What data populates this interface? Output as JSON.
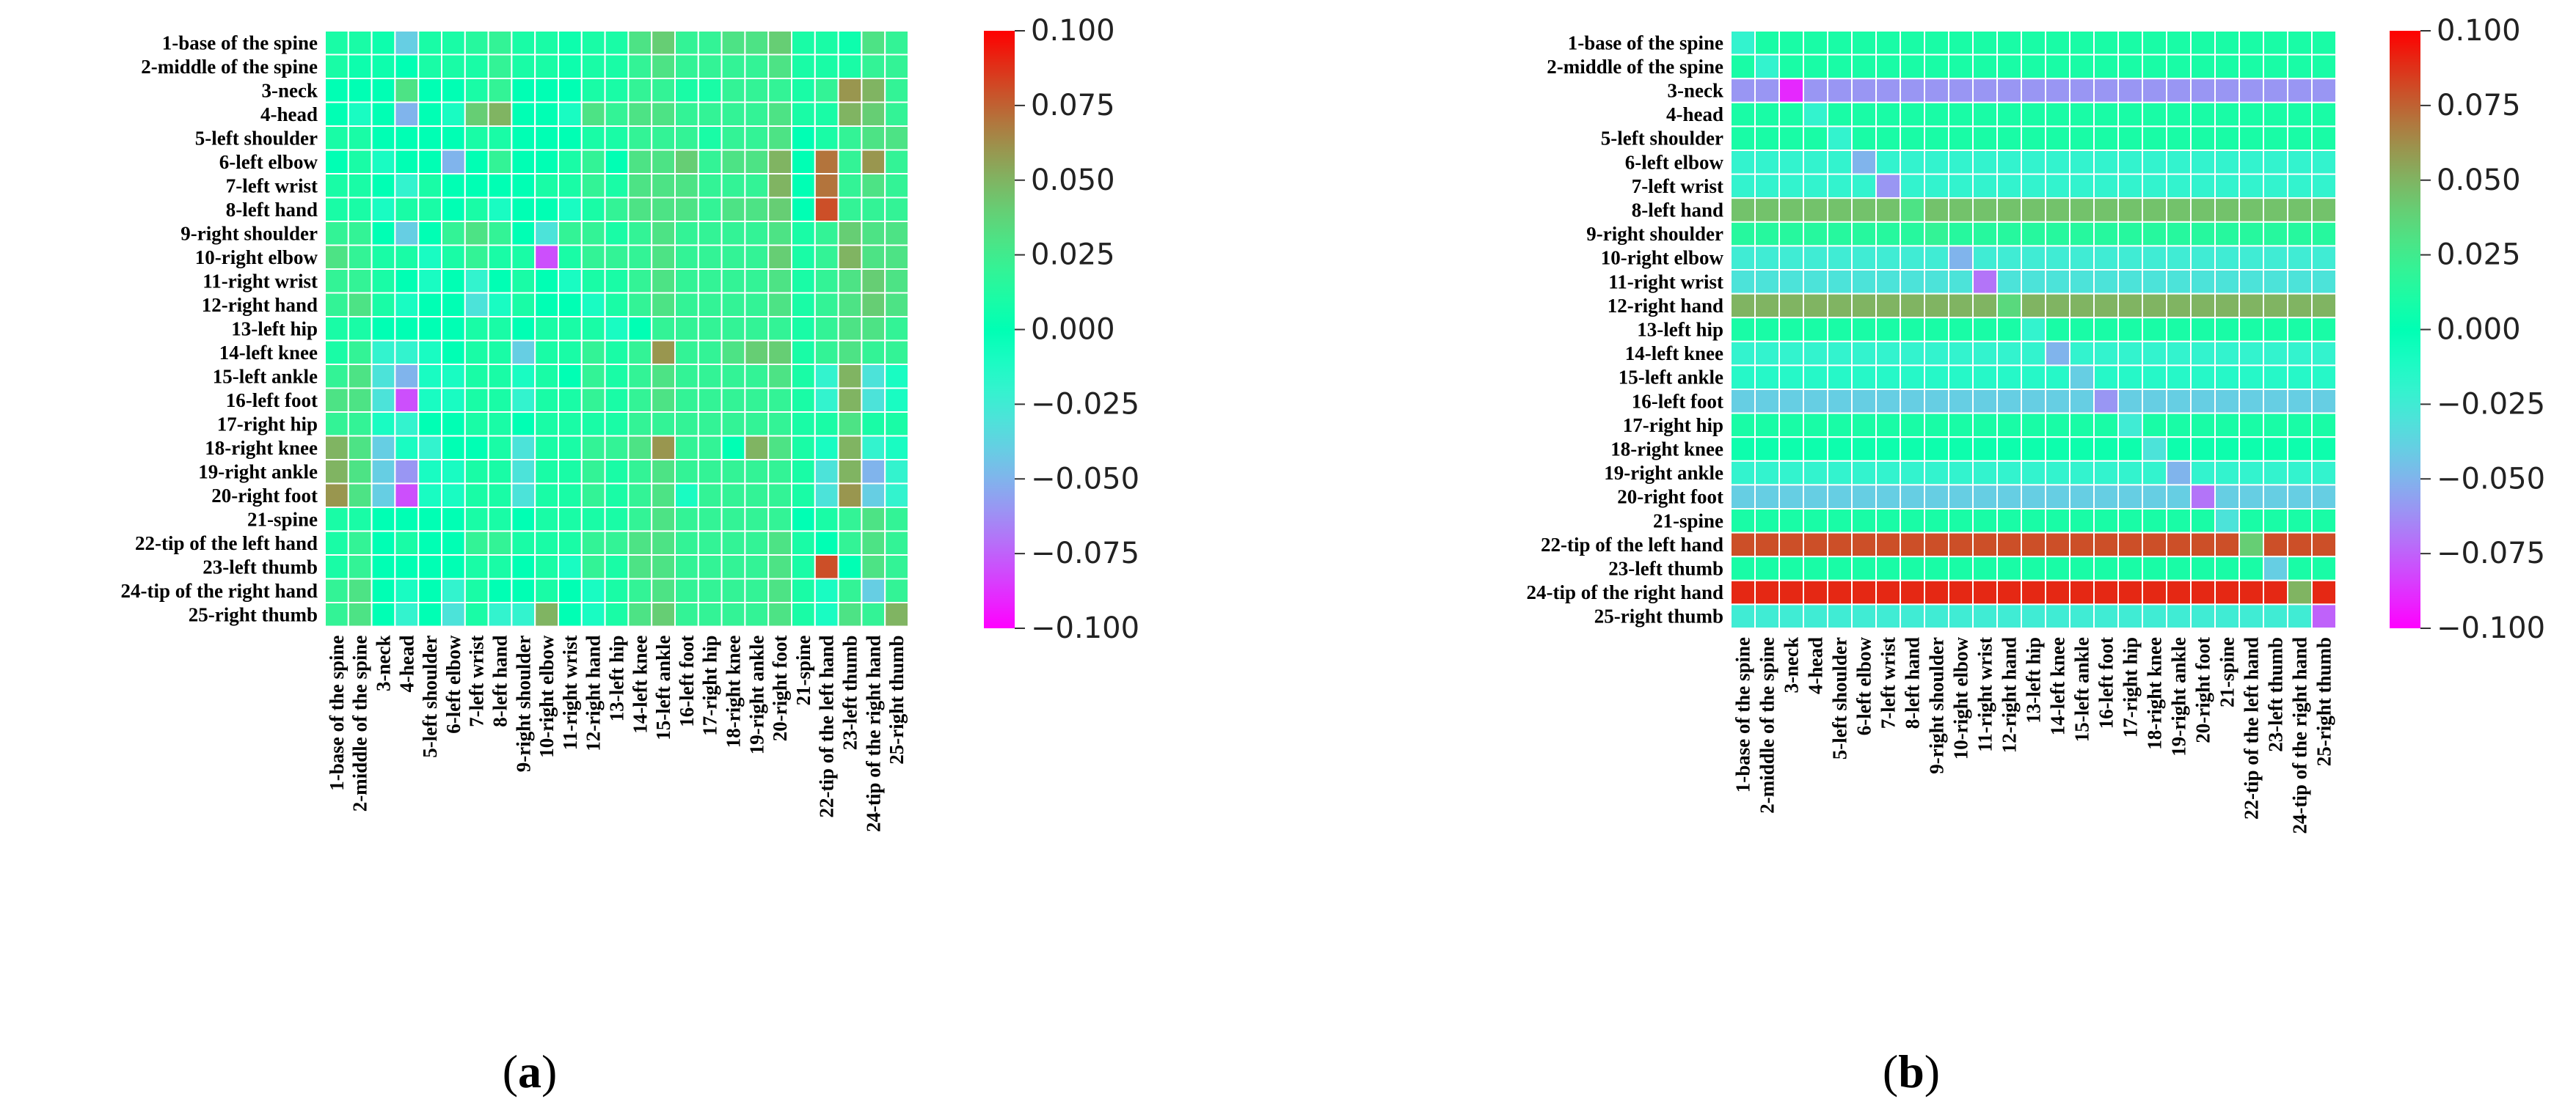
{
  "chart_data": [
    {
      "type": "heatmap",
      "panel": "a",
      "rows": [
        "1-base of the spine",
        "2-middle of the spine",
        "3-neck",
        "4-head",
        "5-left shoulder",
        "6-left elbow",
        "7-left wrist",
        "8-left hand",
        "9-right shoulder",
        "10-right elbow",
        "11-right wrist",
        "12-right hand",
        "13-left hip",
        "14-left knee",
        "15-left ankle",
        "16-left foot",
        "17-right hip",
        "18-right knee",
        "19-right ankle",
        "20-right foot",
        "21-spine",
        "22-tip of the left hand",
        "23-left thumb",
        "24-tip of the right hand",
        "25-right thumb"
      ],
      "columns": [
        "1-base of the spine",
        "2-middle of the spine",
        "3-neck",
        "4-head",
        "5-left shoulder",
        "6-left elbow",
        "7-left wrist",
        "8-left hand",
        "9-right shoulder",
        "10-right elbow",
        "11-right wrist",
        "12-right hand",
        "13-left hip",
        "14-left knee",
        "15-left ankle",
        "16-left foot",
        "17-right hip",
        "18-right knee",
        "19-right ankle",
        "20-right foot",
        "21-spine",
        "22-tip of the left hand",
        "23-left thumb",
        "24-tip of the right hand",
        "25-right thumb"
      ],
      "values": [
        [
          0.01,
          0.01,
          0.005,
          -0.04,
          0.01,
          0.01,
          0.015,
          0.02,
          0.01,
          0.01,
          0.005,
          0.01,
          0.01,
          0.03,
          0.04,
          0.02,
          0.02,
          0.03,
          0.03,
          0.04,
          0.01,
          0.01,
          0.005,
          0.03,
          0.02
        ],
        [
          0.01,
          0.005,
          0.005,
          0.0,
          0.01,
          0.01,
          0.01,
          0.02,
          0.01,
          0.01,
          0.005,
          0.01,
          0.01,
          0.02,
          0.03,
          0.02,
          0.02,
          0.02,
          0.02,
          0.03,
          0.01,
          0.01,
          0.01,
          0.02,
          0.02
        ],
        [
          0.0,
          0.0,
          0.0,
          0.03,
          0.0,
          0.0,
          0.01,
          0.02,
          0.0,
          0.0,
          0.0,
          0.01,
          0.01,
          0.02,
          0.02,
          0.01,
          0.01,
          0.02,
          0.02,
          0.02,
          0.01,
          0.02,
          0.06,
          0.05,
          0.02
        ],
        [
          0.0,
          -0.01,
          0.0,
          -0.05,
          0.0,
          -0.01,
          0.04,
          0.05,
          0.0,
          0.0,
          -0.01,
          0.03,
          0.02,
          0.03,
          0.03,
          0.02,
          0.02,
          0.02,
          0.02,
          0.03,
          0.01,
          0.01,
          0.05,
          0.04,
          0.02
        ],
        [
          0.01,
          0.01,
          0.0,
          0.0,
          0.0,
          0.0,
          0.01,
          0.01,
          0.0,
          0.0,
          0.0,
          0.01,
          0.01,
          0.02,
          0.02,
          0.02,
          0.01,
          0.02,
          0.02,
          0.03,
          0.0,
          0.01,
          0.02,
          0.03,
          0.03
        ],
        [
          0.0,
          0.01,
          -0.01,
          0.0,
          0.0,
          -0.05,
          0.0,
          0.02,
          0.0,
          0.0,
          0.01,
          0.02,
          0.0,
          0.03,
          0.03,
          0.04,
          0.02,
          0.03,
          0.03,
          0.05,
          0.0,
          0.07,
          0.02,
          0.06,
          0.02
        ],
        [
          0.01,
          0.01,
          0.0,
          -0.02,
          0.01,
          0.0,
          0.0,
          0.0,
          0.0,
          0.01,
          0.01,
          0.02,
          0.01,
          0.03,
          0.03,
          0.03,
          0.02,
          0.02,
          0.02,
          0.05,
          0.0,
          0.07,
          0.02,
          0.03,
          0.02
        ],
        [
          0.01,
          0.01,
          -0.01,
          0.01,
          0.01,
          0.0,
          0.01,
          -0.01,
          0.0,
          0.0,
          -0.01,
          0.01,
          0.02,
          0.03,
          0.03,
          0.03,
          0.02,
          0.03,
          0.03,
          0.04,
          0.0,
          0.08,
          0.02,
          0.02,
          0.02
        ],
        [
          0.02,
          0.02,
          0.0,
          -0.04,
          0.0,
          0.02,
          0.03,
          0.02,
          0.0,
          -0.03,
          0.02,
          0.02,
          0.01,
          0.02,
          0.03,
          0.02,
          0.02,
          0.02,
          0.02,
          0.03,
          0.01,
          0.02,
          0.04,
          0.03,
          0.03
        ],
        [
          0.03,
          0.02,
          0.01,
          0.01,
          -0.01,
          0.01,
          0.02,
          0.01,
          0.01,
          -0.08,
          0.01,
          0.02,
          0.02,
          0.02,
          0.03,
          0.02,
          0.02,
          0.02,
          0.02,
          0.04,
          0.01,
          0.02,
          0.05,
          0.03,
          0.03
        ],
        [
          0.02,
          0.02,
          0.01,
          0.0,
          -0.01,
          0.0,
          -0.02,
          0.0,
          0.01,
          0.0,
          -0.01,
          0.01,
          0.01,
          0.02,
          0.03,
          0.02,
          0.02,
          0.02,
          0.02,
          0.03,
          0.01,
          0.02,
          0.03,
          0.04,
          0.03
        ],
        [
          0.02,
          0.03,
          0.01,
          -0.01,
          0.0,
          0.0,
          -0.03,
          -0.01,
          0.01,
          0.0,
          0.0,
          -0.01,
          0.01,
          0.02,
          0.03,
          0.02,
          0.02,
          0.02,
          0.02,
          0.03,
          0.01,
          0.02,
          0.03,
          0.04,
          0.03
        ],
        [
          0.01,
          0.01,
          0.0,
          0.0,
          0.0,
          0.0,
          0.01,
          0.01,
          0.0,
          0.01,
          0.01,
          0.01,
          -0.01,
          0.0,
          0.02,
          0.02,
          0.02,
          0.02,
          0.02,
          0.02,
          0.01,
          0.02,
          0.03,
          0.03,
          0.02
        ],
        [
          0.01,
          0.02,
          -0.02,
          -0.02,
          -0.01,
          0.0,
          0.01,
          0.01,
          -0.04,
          0.01,
          0.01,
          0.02,
          0.01,
          0.02,
          0.06,
          0.02,
          0.02,
          0.03,
          0.04,
          0.04,
          0.01,
          0.02,
          0.03,
          0.02,
          0.02
        ],
        [
          0.02,
          0.03,
          -0.03,
          -0.05,
          -0.01,
          -0.01,
          0.01,
          0.01,
          -0.01,
          0.01,
          0.0,
          0.02,
          0.01,
          0.02,
          0.03,
          0.02,
          0.02,
          0.02,
          0.02,
          0.03,
          0.01,
          -0.02,
          0.05,
          -0.03,
          -0.01
        ],
        [
          0.03,
          0.03,
          -0.03,
          -0.08,
          -0.01,
          -0.01,
          0.01,
          0.01,
          -0.02,
          0.01,
          0.01,
          0.02,
          0.01,
          0.02,
          0.03,
          0.02,
          0.02,
          0.02,
          0.02,
          0.02,
          0.01,
          -0.02,
          0.05,
          -0.03,
          -0.01
        ],
        [
          0.02,
          0.02,
          -0.01,
          -0.02,
          0.0,
          0.0,
          0.01,
          0.01,
          0.0,
          0.01,
          0.01,
          0.01,
          0.01,
          0.02,
          0.02,
          0.02,
          0.02,
          0.02,
          0.02,
          0.02,
          0.01,
          0.01,
          0.03,
          0.01,
          0.01
        ],
        [
          0.05,
          0.03,
          -0.04,
          -0.01,
          -0.02,
          0.0,
          0.0,
          0.01,
          -0.03,
          0.01,
          0.01,
          0.02,
          0.02,
          0.03,
          0.06,
          0.02,
          0.02,
          0.0,
          0.05,
          0.03,
          0.01,
          -0.01,
          0.05,
          -0.02,
          -0.01
        ],
        [
          0.05,
          0.03,
          -0.04,
          -0.06,
          -0.01,
          -0.01,
          0.01,
          0.01,
          -0.03,
          0.01,
          0.01,
          0.02,
          0.01,
          0.02,
          0.03,
          0.02,
          0.02,
          0.02,
          0.02,
          0.02,
          0.01,
          -0.03,
          0.05,
          -0.05,
          -0.02
        ],
        [
          0.06,
          0.03,
          -0.04,
          -0.08,
          -0.01,
          -0.01,
          0.01,
          0.01,
          -0.03,
          0.01,
          0.01,
          0.02,
          0.01,
          0.02,
          0.03,
          -0.01,
          0.02,
          0.02,
          0.02,
          0.02,
          0.01,
          -0.03,
          0.06,
          -0.04,
          -0.02
        ],
        [
          0.01,
          0.01,
          0.0,
          0.0,
          0.0,
          0.0,
          0.01,
          0.01,
          0.0,
          0.01,
          0.01,
          0.01,
          0.01,
          0.02,
          0.03,
          0.02,
          0.02,
          0.02,
          0.02,
          0.02,
          0.0,
          0.01,
          0.02,
          0.03,
          0.02
        ],
        [
          0.01,
          0.02,
          0.0,
          0.01,
          0.0,
          0.0,
          0.02,
          0.02,
          0.01,
          0.01,
          0.01,
          0.02,
          0.02,
          0.03,
          0.03,
          0.02,
          0.02,
          0.02,
          0.02,
          0.03,
          0.01,
          0.0,
          0.02,
          0.03,
          0.02
        ],
        [
          0.01,
          0.02,
          0.0,
          0.0,
          0.0,
          0.0,
          0.01,
          0.01,
          0.0,
          0.01,
          -0.01,
          0.02,
          0.01,
          0.03,
          0.03,
          0.02,
          0.02,
          0.02,
          0.02,
          0.03,
          0.01,
          0.08,
          0.0,
          0.03,
          0.02
        ],
        [
          0.02,
          0.03,
          0.0,
          -0.01,
          0.0,
          -0.02,
          0.01,
          0.0,
          0.0,
          0.01,
          0.0,
          -0.01,
          0.01,
          0.02,
          0.03,
          0.02,
          0.02,
          0.02,
          0.02,
          0.03,
          0.01,
          -0.01,
          0.02,
          -0.04,
          0.02
        ],
        [
          0.02,
          0.03,
          0.0,
          -0.02,
          0.0,
          -0.03,
          0.01,
          -0.02,
          -0.02,
          0.05,
          0.0,
          -0.01,
          0.01,
          0.03,
          0.04,
          0.02,
          0.02,
          0.02,
          0.02,
          0.03,
          0.01,
          -0.01,
          0.03,
          0.02,
          0.05
        ]
      ],
      "vmin": -0.1,
      "vmax": 0.1,
      "colormap": "rainbow",
      "colorbar_ticks": [
        "0.100",
        "0.075",
        "0.050",
        "0.025",
        "0.000",
        "−0.025",
        "−0.050",
        "−0.075",
        "−0.100"
      ],
      "colorbar_tick_values": [
        0.1,
        0.075,
        0.05,
        0.025,
        0.0,
        -0.025,
        -0.05,
        -0.075,
        -0.1
      ],
      "label": "(a)",
      "label_letter": "a"
    },
    {
      "type": "heatmap",
      "panel": "b",
      "rows": [
        "1-base of the spine",
        "2-middle of the spine",
        "3-neck",
        "4-head",
        "5-left shoulder",
        "6-left elbow",
        "7-left wrist",
        "8-left hand",
        "9-right shoulder",
        "10-right elbow",
        "11-right wrist",
        "12-right hand",
        "13-left hip",
        "14-left knee",
        "15-left ankle",
        "16-left foot",
        "17-right hip",
        "18-right knee",
        "19-right ankle",
        "20-right foot",
        "21-spine",
        "22-tip of the left hand",
        "23-left thumb",
        "24-tip of the right hand",
        "25-right thumb"
      ],
      "columns": [
        "1-base of the spine",
        "2-middle of the spine",
        "3-neck",
        "4-head",
        "5-left shoulder",
        "6-left elbow",
        "7-left wrist",
        "8-left hand",
        "9-right shoulder",
        "10-right elbow",
        "11-right wrist",
        "12-right hand",
        "13-left hip",
        "14-left knee",
        "15-left ankle",
        "16-left foot",
        "17-right hip",
        "18-right knee",
        "19-right ankle",
        "20-right foot",
        "21-spine",
        "22-tip of the left hand",
        "23-left thumb",
        "24-tip of the right hand",
        "25-right thumb"
      ],
      "row_values": [
        0.01,
        0.01,
        -0.06,
        0.01,
        0.01,
        -0.02,
        -0.02,
        0.045,
        0.015,
        -0.025,
        -0.03,
        0.05,
        0.01,
        -0.02,
        -0.015,
        -0.04,
        0.01,
        0.005,
        -0.02,
        -0.04,
        0.01,
        0.08,
        0.01,
        0.09,
        -0.025
      ],
      "diagonal_values": [
        -0.02,
        -0.02,
        -0.09,
        -0.02,
        -0.02,
        -0.05,
        -0.06,
        0.03,
        0.02,
        -0.05,
        -0.07,
        0.035,
        -0.02,
        -0.05,
        -0.04,
        -0.06,
        -0.025,
        -0.03,
        -0.05,
        -0.07,
        -0.03,
        0.04,
        -0.04,
        0.05,
        -0.075
      ],
      "vmin": -0.1,
      "vmax": 0.1,
      "colormap": "rainbow",
      "colorbar_ticks": [
        "0.100",
        "0.075",
        "0.050",
        "0.025",
        "0.000",
        "−0.025",
        "−0.050",
        "−0.075",
        "−0.100"
      ],
      "colorbar_tick_values": [
        0.1,
        0.075,
        0.05,
        0.025,
        0.0,
        -0.025,
        -0.05,
        -0.075,
        -0.1
      ],
      "label": "(b)",
      "label_letter": "b"
    }
  ]
}
